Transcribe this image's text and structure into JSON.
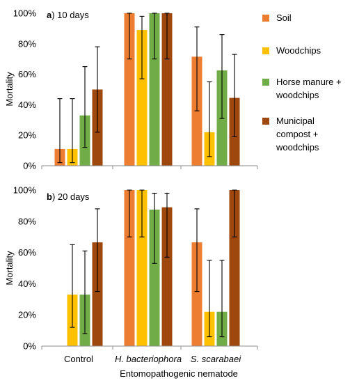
{
  "chart_data": [
    {
      "type": "bar",
      "panel_label": "a",
      "title": "10 days",
      "xlabel": "",
      "ylabel": "Mortality",
      "ylim": [
        0,
        100
      ],
      "yticks": [
        "0%",
        "20%",
        "40%",
        "60%",
        "80%",
        "100%"
      ],
      "categories": [
        "Control",
        "H. bacteriophora",
        "S. scarabaei"
      ],
      "series": [
        {
          "name": "Soil",
          "values": [
            11,
            100,
            71.5
          ],
          "err_low": [
            2,
            70,
            36
          ],
          "err_high": [
            44,
            100,
            91
          ]
        },
        {
          "name": "Woodchips",
          "values": [
            11,
            89,
            22
          ],
          "err_low": [
            2,
            57,
            6
          ],
          "err_high": [
            44,
            98,
            55
          ]
        },
        {
          "name": "Horse manure + woodchips",
          "values": [
            33,
            100,
            62.5
          ],
          "err_low": [
            12,
            70,
            31
          ],
          "err_high": [
            65,
            100,
            86
          ]
        },
        {
          "name": "Municipal compost + woodchips",
          "values": [
            50,
            100,
            44.5
          ],
          "err_low": [
            22,
            70,
            19
          ],
          "err_high": [
            78,
            100,
            73
          ]
        }
      ]
    },
    {
      "type": "bar",
      "panel_label": "b",
      "title": "20 days",
      "xlabel": "Entomopathogenic nematode",
      "ylabel": "Mortality",
      "ylim": [
        0,
        100
      ],
      "yticks": [
        "0%",
        "20%",
        "40%",
        "60%",
        "80%",
        "100%"
      ],
      "categories": [
        "Control",
        "H. bacteriophora",
        "S. scarabaei"
      ],
      "series": [
        {
          "name": "Soil",
          "values": [
            0,
            100,
            66.5
          ],
          "err_low": [
            0,
            70,
            35
          ],
          "err_high": [
            0,
            100,
            88
          ]
        },
        {
          "name": "Woodchips",
          "values": [
            33,
            100,
            22
          ],
          "err_low": [
            12,
            70,
            6
          ],
          "err_high": [
            65,
            100,
            55
          ]
        },
        {
          "name": "Horse manure + woodchips",
          "values": [
            33,
            87.5,
            22
          ],
          "err_low": [
            8,
            53,
            6
          ],
          "err_high": [
            61,
            98,
            55
          ]
        },
        {
          "name": "Municipal compost + woodchips",
          "values": [
            66.5,
            89,
            100
          ],
          "err_low": [
            35,
            57,
            70
          ],
          "err_high": [
            88,
            98,
            100
          ]
        }
      ]
    }
  ],
  "legend": {
    "placement": "right",
    "items": [
      {
        "lines": [
          "Soil"
        ],
        "color": "#ED7D31"
      },
      {
        "lines": [
          "Woodchips"
        ],
        "color": "#FFC000"
      },
      {
        "lines": [
          "Horse manure +",
          "woodchips"
        ],
        "color": "#70AD47"
      },
      {
        "lines": [
          "Municipal",
          "compost +",
          "woodchips"
        ],
        "color": "#9E480E"
      }
    ]
  }
}
